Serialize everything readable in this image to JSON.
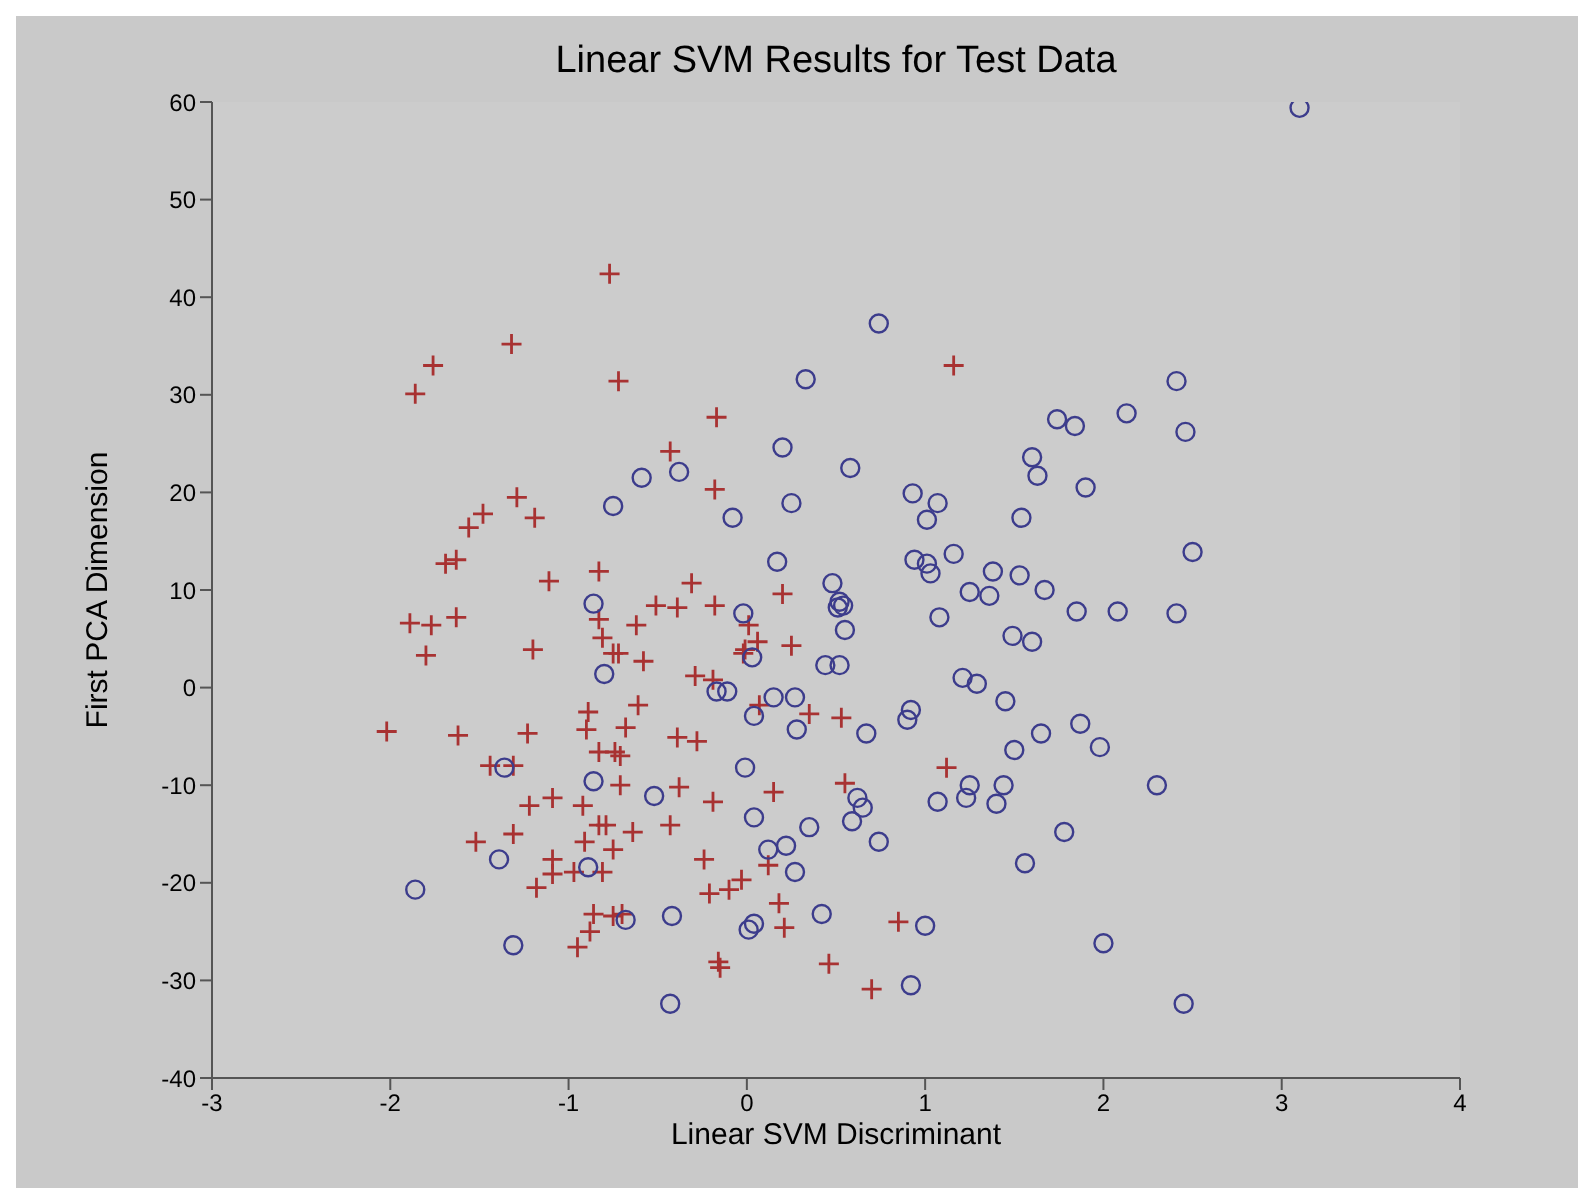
{
  "chart_data": {
    "type": "scatter",
    "title": "Linear SVM Results for Test Data",
    "xlabel": "Linear SVM Discriminant",
    "ylabel": "First PCA Dimension",
    "xlim": [
      -3,
      4
    ],
    "xticks": [
      -3,
      -2,
      -1,
      0,
      1,
      2,
      3,
      4
    ],
    "ylim": [
      -40,
      60
    ],
    "yticks": [
      -40,
      -30,
      -20,
      -10,
      0,
      10,
      20,
      30,
      40,
      50,
      60
    ],
    "series": [
      {
        "color": "#a83232",
        "marker": "cross",
        "x": [
          -0.77,
          -1.32,
          -1.76,
          -1.86,
          -0.72,
          -0.17,
          -0.43,
          -0.18,
          -1.29,
          -1.48,
          -1.19,
          -1.56,
          -1.63,
          -1.69,
          -1.11,
          -0.83,
          -0.31,
          -0.51,
          -0.39,
          -0.18,
          -1.89,
          -1.77,
          -1.63,
          -1.8,
          -1.2,
          -0.83,
          -0.81,
          -0.75,
          -0.72,
          -0.62,
          -0.58,
          -0.02,
          -0.29,
          -0.19,
          -0.61,
          -0.89,
          -2.02,
          -1.62,
          -1.23,
          -0.9,
          -0.68,
          -0.39,
          -0.28,
          -0.83,
          -0.74,
          -0.71,
          -1.44,
          -1.31,
          -0.71,
          -0.38,
          -0.19,
          -1.22,
          -1.09,
          -0.92,
          -0.83,
          -0.79,
          -0.64,
          -0.43,
          -1.52,
          -1.31,
          -0.91,
          -0.75,
          -1.09,
          -1.09,
          -0.97,
          -0.81,
          -1.18,
          -0.24,
          -0.21,
          -0.1,
          -0.03,
          -0.86,
          -0.75,
          -0.7,
          -0.88,
          -0.95,
          -0.16,
          -0.15,
          1.16,
          0.2,
          0.01,
          0.06,
          -0.01,
          0.25,
          0.07,
          0.35,
          0.53,
          1.12,
          0.55,
          0.15,
          0.12,
          0.18,
          0.21,
          0.85,
          0.46,
          0.7
        ],
        "values": [
          42.4,
          35.2,
          33,
          30.1,
          31.4,
          27.7,
          24.2,
          20.3,
          19.5,
          17.8,
          17.4,
          16.4,
          13.1,
          12.7,
          10.9,
          11.9,
          10.7,
          8.4,
          8.2,
          8.4,
          6.6,
          6.4,
          7.2,
          3.3,
          3.9,
          7,
          5.1,
          3.5,
          3.5,
          6.4,
          2.7,
          3.5,
          1.2,
          0.8,
          -1.8,
          -2.5,
          -4.5,
          -4.9,
          -4.7,
          -4.3,
          -4.1,
          -5.1,
          -5.5,
          -6.6,
          -6.6,
          -7,
          -8,
          -8,
          -10,
          -10.2,
          -11.7,
          -12.1,
          -11.3,
          -12.1,
          -14.1,
          -14.1,
          -14.8,
          -14.1,
          -15.8,
          -15,
          -15.8,
          -16.6,
          -17.6,
          -19.1,
          -18.9,
          -18.9,
          -20.5,
          -17.6,
          -21.1,
          -20.7,
          -19.7,
          -23.2,
          -23.4,
          -23.2,
          -25,
          -26.6,
          -28.1,
          -28.7,
          33,
          9.6,
          6.4,
          4.7,
          3.9,
          4.3,
          -1.8,
          -2.7,
          -3.1,
          -8.2,
          -9.8,
          -10.7,
          -18.2,
          -22.1,
          -24.6,
          -24,
          -28.3,
          -30.9
        ]
      },
      {
        "color": "#3c3c8c",
        "marker": "circle",
        "x": [
          -0.59,
          -0.38,
          -0.75,
          -0.08,
          -0.86,
          -0.02,
          0.03,
          -0.8,
          -0.17,
          -0.11,
          0.04,
          -1.36,
          -0.86,
          -0.52,
          -0.01,
          0.04,
          -1.39,
          -0.89,
          -1.86,
          -0.68,
          -0.42,
          0.01,
          0.04,
          -1.31,
          -0.43,
          0.74,
          0.33,
          1.74,
          1.84,
          2.13,
          0.2,
          0.58,
          1.6,
          1.63,
          1.9,
          0.93,
          1.07,
          1.01,
          0.25,
          1.54,
          0.17,
          0.94,
          1.01,
          1.03,
          1.16,
          1.38,
          1.53,
          1.67,
          1.25,
          1.36,
          1.85,
          2.08,
          0.48,
          0.52,
          0.54,
          0.51,
          0.55,
          1.08,
          1.49,
          1.6,
          0.44,
          0.52,
          1.21,
          1.29,
          1.45,
          0.15,
          0.27,
          0.28,
          0.67,
          0.92,
          0.9,
          1.65,
          1.87,
          1.98,
          1.5,
          1.25,
          1.23,
          1.44,
          1.4,
          1.07,
          0.62,
          0.65,
          0.59,
          0.35,
          0.74,
          0.12,
          0.22,
          0.27,
          1.78,
          1.56,
          0.42,
          1,
          0.92,
          2,
          3.1,
          2.41,
          2.46,
          2.5,
          2.41,
          2.3,
          2.45
        ],
        "values": [
          21.5,
          22.1,
          18.6,
          17.4,
          8.6,
          7.6,
          3.1,
          1.4,
          -0.4,
          -0.4,
          -2.9,
          -8.2,
          -9.6,
          -11.1,
          -8.2,
          -13.3,
          -17.6,
          -18.4,
          -20.7,
          -23.8,
          -23.4,
          -24.8,
          -24.2,
          -26.4,
          -32.4,
          37.3,
          31.6,
          27.5,
          26.8,
          28.1,
          24.6,
          22.5,
          23.6,
          21.7,
          20.5,
          19.9,
          18.9,
          17.2,
          18.9,
          17.4,
          12.9,
          13.1,
          12.7,
          11.7,
          13.7,
          11.9,
          11.5,
          10,
          9.8,
          9.4,
          7.8,
          7.8,
          10.7,
          8.8,
          8.4,
          8.2,
          5.9,
          7.2,
          5.3,
          4.7,
          2.3,
          2.3,
          1,
          0.4,
          -1.4,
          -1,
          -1,
          -4.3,
          -4.7,
          -2.3,
          -3.3,
          -4.7,
          -3.7,
          -6.1,
          -6.4,
          -10,
          -11.3,
          -10,
          -11.9,
          -11.7,
          -11.3,
          -12.3,
          -13.7,
          -14.3,
          -15.8,
          -16.6,
          -16.2,
          -18.9,
          -14.8,
          -18,
          -23.2,
          -24.4,
          -30.5,
          -26.2,
          59.4,
          31.4,
          26.2,
          13.9,
          7.6,
          -10,
          -32.4
        ]
      }
    ]
  }
}
